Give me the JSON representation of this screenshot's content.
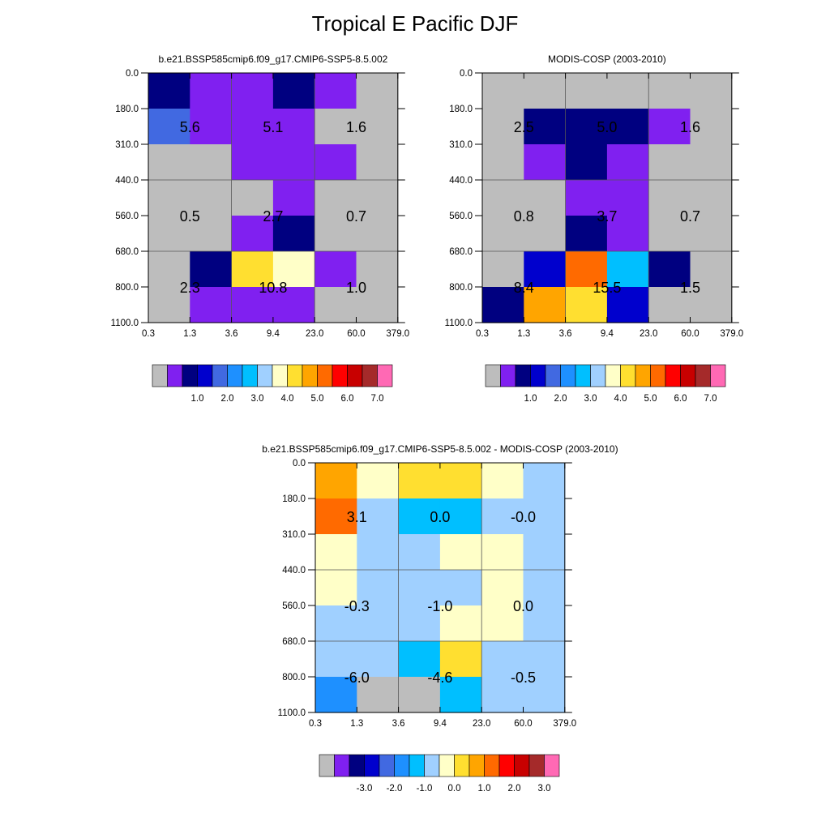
{
  "figure": {
    "title": "Tropical E Pacific DJF"
  },
  "chart_data": [
    {
      "type": "heatmap",
      "title": "b.e21.BSSP585cmip6.f09_g17.CMIP6-SSP5-8.5.002",
      "x_ticks": [
        "0.3",
        "1.3",
        "3.6",
        "9.4",
        "23.0",
        "60.0",
        "379.0"
      ],
      "y_ticks": [
        "0.0",
        "180.0",
        "310.0",
        "440.0",
        "560.0",
        "680.0",
        "800.0",
        "1100.0"
      ],
      "cell_colors": [
        [
          "#000080",
          "#8020f0",
          "#8020f0",
          "#000080",
          "#8020f0",
          "#bdbdbd"
        ],
        [
          "#4169e1",
          "#8020f0",
          "#8020f0",
          "#8020f0",
          "#bdbdbd",
          "#bdbdbd"
        ],
        [
          "#bdbdbd",
          "#bdbdbd",
          "#8020f0",
          "#8020f0",
          "#8020f0",
          "#bdbdbd"
        ],
        [
          "#bdbdbd",
          "#bdbdbd",
          "#bdbdbd",
          "#8020f0",
          "#bdbdbd",
          "#bdbdbd"
        ],
        [
          "#bdbdbd",
          "#bdbdbd",
          "#8020f0",
          "#000080",
          "#bdbdbd",
          "#bdbdbd"
        ],
        [
          "#bdbdbd",
          "#000080",
          "#ffdf30",
          "#ffffc8",
          "#8020f0",
          "#bdbdbd"
        ],
        [
          "#bdbdbd",
          "#8020f0",
          "#8020f0",
          "#8020f0",
          "#bdbdbd",
          "#bdbdbd"
        ]
      ],
      "block_values": [
        [
          "5.6",
          "5.1",
          "1.6"
        ],
        [
          "0.5",
          "2.7",
          "0.7"
        ],
        [
          "2.3",
          "10.8",
          "1.0"
        ]
      ],
      "colorbar": {
        "colors": [
          "#bdbdbd",
          "#8020f0",
          "#000080",
          "#0000cd",
          "#4169e1",
          "#1e90ff",
          "#00bfff",
          "#a0d0ff",
          "#ffffc8",
          "#ffdf30",
          "#ffa500",
          "#ff6a00",
          "#ff0000",
          "#c80000",
          "#a52a2a",
          "#ff69b4"
        ],
        "labels": [
          "1.0",
          "2.0",
          "3.0",
          "4.0",
          "5.0",
          "6.0",
          "7.0"
        ]
      }
    },
    {
      "type": "heatmap",
      "title": "MODIS-COSP (2003-2010)",
      "x_ticks": [
        "0.3",
        "1.3",
        "3.6",
        "9.4",
        "23.0",
        "60.0",
        "379.0"
      ],
      "y_ticks": [
        "0.0",
        "180.0",
        "310.0",
        "440.0",
        "560.0",
        "680.0",
        "800.0",
        "1100.0"
      ],
      "cell_colors": [
        [
          "#bdbdbd",
          "#bdbdbd",
          "#bdbdbd",
          "#bdbdbd",
          "#bdbdbd",
          "#bdbdbd"
        ],
        [
          "#bdbdbd",
          "#000080",
          "#000080",
          "#000080",
          "#8020f0",
          "#bdbdbd"
        ],
        [
          "#bdbdbd",
          "#8020f0",
          "#000080",
          "#8020f0",
          "#bdbdbd",
          "#bdbdbd"
        ],
        [
          "#bdbdbd",
          "#bdbdbd",
          "#8020f0",
          "#8020f0",
          "#bdbdbd",
          "#bdbdbd"
        ],
        [
          "#bdbdbd",
          "#bdbdbd",
          "#000080",
          "#8020f0",
          "#bdbdbd",
          "#bdbdbd"
        ],
        [
          "#bdbdbd",
          "#0000cd",
          "#ff6a00",
          "#00bfff",
          "#000080",
          "#bdbdbd"
        ],
        [
          "#000080",
          "#ffa500",
          "#ffdf30",
          "#0000cd",
          "#bdbdbd",
          "#bdbdbd"
        ]
      ],
      "block_values": [
        [
          "2.5",
          "5.0",
          "1.6"
        ],
        [
          "0.8",
          "3.7",
          "0.7"
        ],
        [
          "8.4",
          "15.5",
          "1.5"
        ]
      ],
      "colorbar": {
        "colors": [
          "#bdbdbd",
          "#8020f0",
          "#000080",
          "#0000cd",
          "#4169e1",
          "#1e90ff",
          "#00bfff",
          "#a0d0ff",
          "#ffffc8",
          "#ffdf30",
          "#ffa500",
          "#ff6a00",
          "#ff0000",
          "#c80000",
          "#a52a2a",
          "#ff69b4"
        ],
        "labels": [
          "1.0",
          "2.0",
          "3.0",
          "4.0",
          "5.0",
          "6.0",
          "7.0"
        ]
      }
    },
    {
      "type": "heatmap",
      "title": "b.e21.BSSP585cmip6.f09_g17.CMIP6-SSP5-8.5.002 - MODIS-COSP (2003-2010)",
      "x_ticks": [
        "0.3",
        "1.3",
        "3.6",
        "9.4",
        "23.0",
        "60.0",
        "379.0"
      ],
      "y_ticks": [
        "0.0",
        "180.0",
        "310.0",
        "440.0",
        "560.0",
        "680.0",
        "800.0",
        "1100.0"
      ],
      "cell_colors": [
        [
          "#ffa500",
          "#ffffc8",
          "#ffdf30",
          "#ffdf30",
          "#ffffc8",
          "#a0d0ff"
        ],
        [
          "#ff6a00",
          "#a0d0ff",
          "#00bfff",
          "#00bfff",
          "#a0d0ff",
          "#a0d0ff"
        ],
        [
          "#ffffc8",
          "#a0d0ff",
          "#a0d0ff",
          "#ffffc8",
          "#ffffc8",
          "#a0d0ff"
        ],
        [
          "#ffffc8",
          "#a0d0ff",
          "#a0d0ff",
          "#a0d0ff",
          "#ffffc8",
          "#a0d0ff"
        ],
        [
          "#a0d0ff",
          "#a0d0ff",
          "#a0d0ff",
          "#ffffc8",
          "#ffffc8",
          "#a0d0ff"
        ],
        [
          "#a0d0ff",
          "#a0d0ff",
          "#00bfff",
          "#ffdf30",
          "#a0d0ff",
          "#a0d0ff"
        ],
        [
          "#1e90ff",
          "#bdbdbd",
          "#bdbdbd",
          "#00bfff",
          "#a0d0ff",
          "#a0d0ff"
        ]
      ],
      "block_values": [
        [
          "3.1",
          "0.0",
          "-0.0"
        ],
        [
          "-0.3",
          "-1.0",
          "0.0"
        ],
        [
          "-6.0",
          "-4.6",
          "-0.5"
        ]
      ],
      "colorbar": {
        "colors": [
          "#bdbdbd",
          "#8020f0",
          "#000080",
          "#0000cd",
          "#4169e1",
          "#1e90ff",
          "#00bfff",
          "#a0d0ff",
          "#ffffc8",
          "#ffdf30",
          "#ffa500",
          "#ff6a00",
          "#ff0000",
          "#c80000",
          "#a52a2a",
          "#ff69b4"
        ],
        "labels": [
          "-3.0",
          "-2.0",
          "-1.0",
          "0.0",
          "1.0",
          "2.0",
          "3.0"
        ]
      }
    }
  ]
}
